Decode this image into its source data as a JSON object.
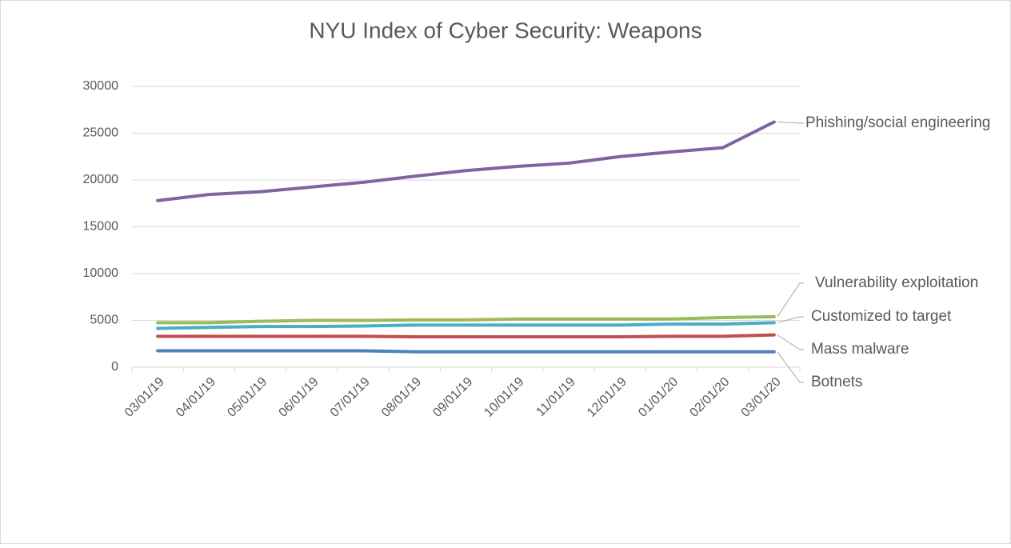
{
  "chart_data": {
    "type": "line",
    "title": "NYU Index of Cyber Security: Weapons",
    "categories": [
      "03/01/19",
      "04/01/19",
      "05/01/19",
      "06/01/19",
      "07/01/19",
      "08/01/19",
      "09/01/19",
      "10/01/19",
      "11/01/19",
      "12/01/19",
      "01/01/20",
      "02/01/20",
      "03/01/20"
    ],
    "series": [
      {
        "name": "Phishing/social engineering",
        "color": "#8064a2",
        "values": [
          17800,
          18450,
          18750,
          19250,
          19750,
          20400,
          21000,
          21450,
          21800,
          22500,
          23000,
          23450,
          26200
        ]
      },
      {
        "name": "Vulnerability exploitation",
        "color": "#9bbb59",
        "values": [
          4750,
          4750,
          4900,
          5000,
          5000,
          5050,
          5050,
          5150,
          5150,
          5150,
          5150,
          5300,
          5400
        ]
      },
      {
        "name": "Customized to target",
        "color": "#4bacc6",
        "values": [
          4150,
          4250,
          4350,
          4350,
          4400,
          4500,
          4500,
          4500,
          4500,
          4500,
          4600,
          4600,
          4750
        ]
      },
      {
        "name": "Mass malware",
        "color": "#c0504d",
        "values": [
          3300,
          3300,
          3300,
          3300,
          3300,
          3250,
          3250,
          3250,
          3250,
          3250,
          3300,
          3300,
          3450
        ]
      },
      {
        "name": "Botnets",
        "color": "#4f81bd",
        "values": [
          1750,
          1750,
          1750,
          1750,
          1750,
          1650,
          1650,
          1650,
          1650,
          1650,
          1650,
          1650,
          1650
        ]
      }
    ],
    "ylim": [
      0,
      30000
    ],
    "yticks": [
      0,
      5000,
      10000,
      15000,
      20000,
      25000,
      30000
    ],
    "grid": true
  }
}
